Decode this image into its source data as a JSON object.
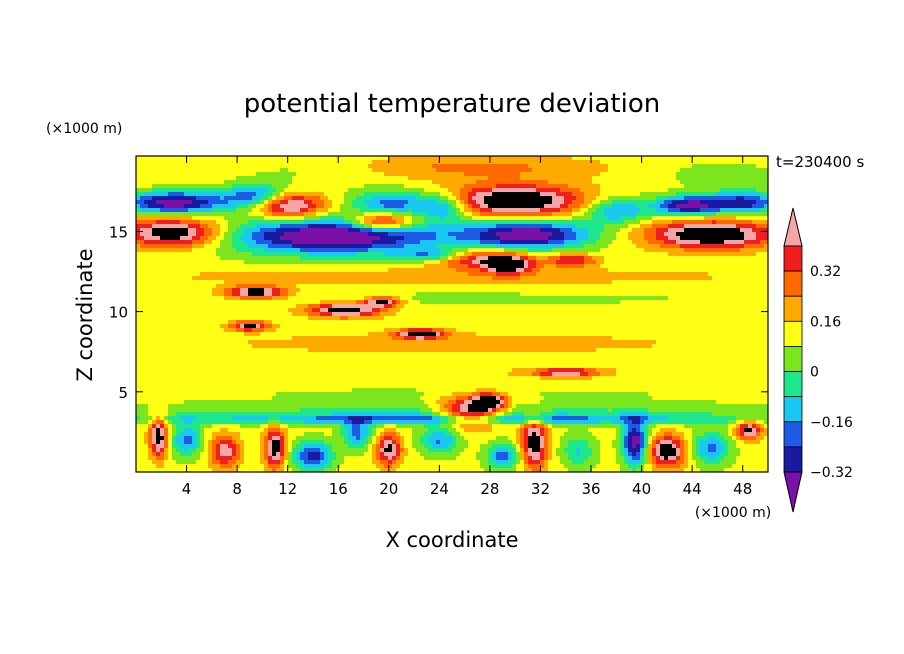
{
  "chart_data": {
    "type": "heatmap",
    "title": "potential temperature deviation",
    "xlabel": "X coordinate",
    "ylabel": "Z coordinate",
    "x_unit": "(×1000 m)",
    "y_unit": "(×1000 m)",
    "time_label": "t=230400 s",
    "xlim": [
      0,
      50
    ],
    "ylim": [
      0,
      19.7
    ],
    "x_ticks": [
      "4",
      "8",
      "12",
      "16",
      "20",
      "24",
      "28",
      "32",
      "36",
      "40",
      "44",
      "48"
    ],
    "y_ticks": [
      "5",
      "10",
      "15"
    ],
    "colorbar": {
      "levels": [
        -0.4,
        -0.32,
        -0.24,
        -0.16,
        -0.08,
        0,
        0.08,
        0.16,
        0.24,
        0.32,
        0.4
      ],
      "labels": [
        "0.32",
        "0.16",
        "0",
        "−0.16",
        "−0.32"
      ],
      "colors": [
        "#7a10a8",
        "#1a1aa0",
        "#1e5ae6",
        "#19c8f0",
        "#1ee68c",
        "#7be61e",
        "#ffff14",
        "#ffaa00",
        "#ff6a00",
        "#f01e1e",
        "#f5a5a5"
      ]
    },
    "background_value": 0.03,
    "features": [
      {
        "x": 3,
        "z": 18.7,
        "rx": 6,
        "rz": 0.9,
        "v": 0.05
      },
      {
        "x": 13,
        "z": 18.8,
        "rx": 6,
        "rz": 0.8,
        "v": -0.05
      },
      {
        "x": 27,
        "z": 19.0,
        "rx": 10,
        "rz": 0.8,
        "v": 0.15
      },
      {
        "x": 46,
        "z": 18.6,
        "rx": 5,
        "rz": 0.9,
        "v": -0.06
      },
      {
        "x": 3,
        "z": 16.8,
        "rx": 4,
        "rz": 0.7,
        "v": -0.5
      },
      {
        "x": 9.5,
        "z": 17.2,
        "rx": 2.5,
        "rz": 0.8,
        "v": -0.35
      },
      {
        "x": 12,
        "z": 16.6,
        "rx": 2.8,
        "rz": 0.8,
        "v": 0.45
      },
      {
        "x": 20.5,
        "z": 16.8,
        "rx": 3.2,
        "rz": 0.8,
        "v": -0.32
      },
      {
        "x": 19.5,
        "z": 15.6,
        "rx": 2.4,
        "rz": 0.55,
        "v": 0.45
      },
      {
        "x": 24.5,
        "z": 16.5,
        "rx": 1.8,
        "rz": 0.8,
        "v": -0.3
      },
      {
        "x": 30,
        "z": 16.9,
        "rx": 5.5,
        "rz": 1.0,
        "v": 0.5
      },
      {
        "x": 38,
        "z": 16.3,
        "rx": 2.5,
        "rz": 0.8,
        "v": -0.3
      },
      {
        "x": 43.5,
        "z": 16.6,
        "rx": 2.5,
        "rz": 0.6,
        "v": -0.45
      },
      {
        "x": 48,
        "z": 16.8,
        "rx": 3,
        "rz": 0.7,
        "v": -0.4
      },
      {
        "x": 3,
        "z": 14.9,
        "rx": 4,
        "rz": 0.9,
        "v": 0.5
      },
      {
        "x": 15.5,
        "z": 14.7,
        "rx": 8.5,
        "rz": 1.1,
        "v": -0.55
      },
      {
        "x": 31,
        "z": 14.8,
        "rx": 5,
        "rz": 0.9,
        "v": -0.5
      },
      {
        "x": 45.5,
        "z": 14.8,
        "rx": 5,
        "rz": 0.9,
        "v": 0.5
      },
      {
        "x": 27,
        "z": 13.3,
        "rx": 4,
        "rz": 0.6,
        "v": 0.35
      },
      {
        "x": 29.5,
        "z": 12.9,
        "rx": 1.8,
        "rz": 0.5,
        "v": 0.45
      },
      {
        "x": 23.5,
        "z": 13.5,
        "rx": 2.8,
        "rz": 0.4,
        "v": -0.3
      },
      {
        "x": 34.5,
        "z": 13.2,
        "rx": 2,
        "rz": 0.4,
        "v": 0.3
      },
      {
        "x": 25,
        "z": 12.2,
        "rx": 24,
        "rz": 0.5,
        "v": 0.11
      },
      {
        "x": 25,
        "z": 10.8,
        "rx": 24,
        "rz": 0.45,
        "v": -0.05
      },
      {
        "x": 9.5,
        "z": 11.2,
        "rx": 2.5,
        "rz": 0.4,
        "v": 0.45
      },
      {
        "x": 16.5,
        "z": 10.1,
        "rx": 3,
        "rz": 0.45,
        "v": 0.45
      },
      {
        "x": 19.5,
        "z": 10.6,
        "rx": 1.5,
        "rz": 0.3,
        "v": 0.4
      },
      {
        "x": 9,
        "z": 9.1,
        "rx": 1.5,
        "rz": 0.3,
        "v": 0.4
      },
      {
        "x": 22.5,
        "z": 8.6,
        "rx": 2,
        "rz": 0.3,
        "v": 0.45
      },
      {
        "x": 25,
        "z": 8.0,
        "rx": 24,
        "rz": 0.8,
        "v": 0.08
      },
      {
        "x": 25,
        "z": 6.2,
        "rx": 24,
        "rz": 0.5,
        "v": 0.04
      },
      {
        "x": 34,
        "z": 6.2,
        "rx": 2.5,
        "rz": 0.25,
        "v": 0.35
      },
      {
        "x": 25,
        "z": 4.9,
        "rx": 24,
        "rz": 0.5,
        "v": -0.04
      },
      {
        "x": 25,
        "z": 3.9,
        "rx": 24,
        "rz": 0.5,
        "v": -0.12
      },
      {
        "x": 25,
        "z": 3.3,
        "rx": 24,
        "rz": 0.35,
        "v": -0.3
      },
      {
        "x": 26.5,
        "z": 3.8,
        "rx": 2.5,
        "rz": 0.9,
        "v": 0.5
      },
      {
        "x": 28,
        "z": 4.4,
        "rx": 1.2,
        "rz": 0.5,
        "v": 0.45
      },
      {
        "x": 1.8,
        "z": 2.2,
        "rx": 0.7,
        "rz": 1.3,
        "v": 0.45
      },
      {
        "x": 4,
        "z": 2.0,
        "rx": 1.2,
        "rz": 1.0,
        "v": -0.3
      },
      {
        "x": 7,
        "z": 1.3,
        "rx": 1.2,
        "rz": 1.0,
        "v": 0.35
      },
      {
        "x": 11,
        "z": 1.5,
        "rx": 0.8,
        "rz": 1.3,
        "v": 0.45
      },
      {
        "x": 14,
        "z": 1.0,
        "rx": 1.5,
        "rz": 0.9,
        "v": -0.4
      },
      {
        "x": 17.5,
        "z": 2.4,
        "rx": 1.2,
        "rz": 0.9,
        "v": -0.3
      },
      {
        "x": 20,
        "z": 1.4,
        "rx": 1.0,
        "rz": 1.0,
        "v": 0.4
      },
      {
        "x": 24,
        "z": 2.0,
        "rx": 1.5,
        "rz": 0.9,
        "v": -0.28
      },
      {
        "x": 31.5,
        "z": 1.8,
        "rx": 1.0,
        "rz": 1.6,
        "v": 0.45
      },
      {
        "x": 29,
        "z": 1.0,
        "rx": 1.3,
        "rz": 0.8,
        "v": -0.3
      },
      {
        "x": 35,
        "z": 1.3,
        "rx": 1.3,
        "rz": 1.0,
        "v": -0.2
      },
      {
        "x": 39.5,
        "z": 1.8,
        "rx": 1.0,
        "rz": 1.4,
        "v": -0.5
      },
      {
        "x": 42,
        "z": 1.3,
        "rx": 1.5,
        "rz": 1.0,
        "v": 0.45
      },
      {
        "x": 45.5,
        "z": 1.5,
        "rx": 1.5,
        "rz": 1.0,
        "v": -0.3
      },
      {
        "x": 48.5,
        "z": 2.6,
        "rx": 1.0,
        "rz": 0.6,
        "v": 0.4
      }
    ]
  }
}
